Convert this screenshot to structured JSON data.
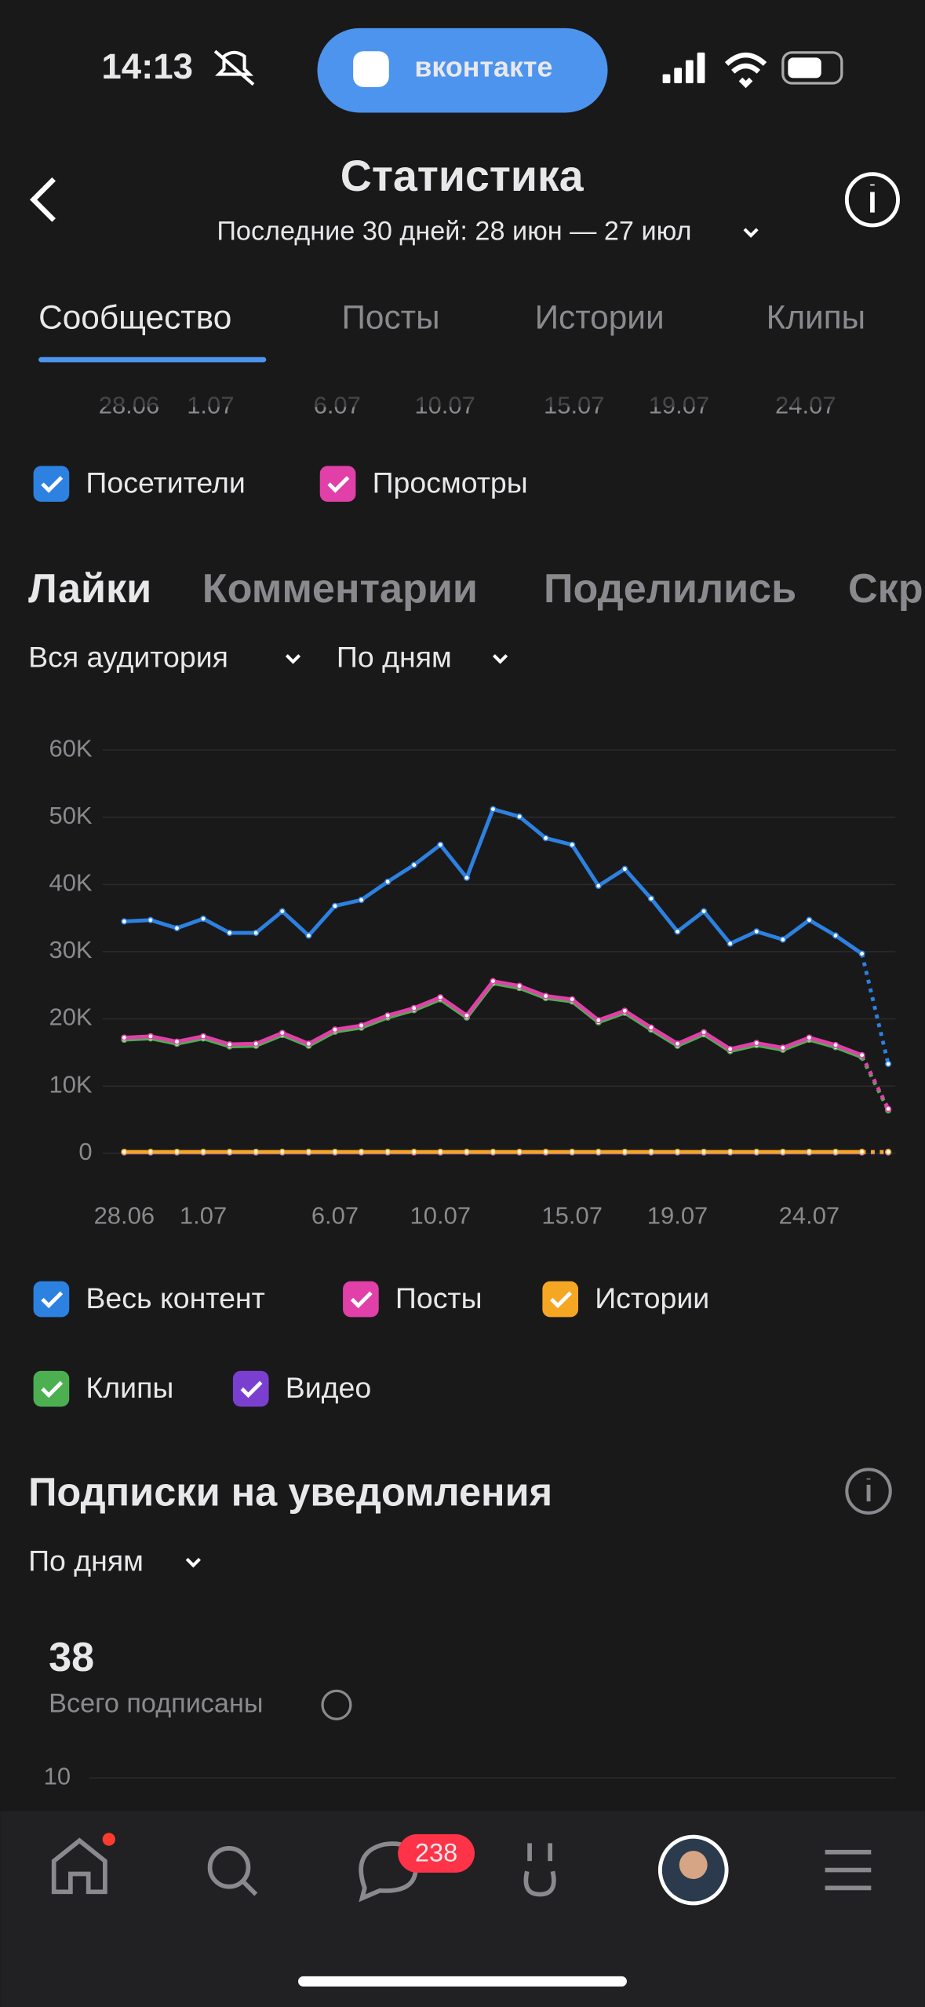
{
  "status_bar": {
    "time": "14:13",
    "app_pill": "вконтакте"
  },
  "header": {
    "title": "Статистика",
    "subtitle": "Последние 30 дней: 28 июн — 27 июл"
  },
  "tabs": [
    "Сообщество",
    "Посты",
    "Истории",
    "Клипы"
  ],
  "upper_chart": {
    "x_labels": [
      "28.06",
      "1.07",
      "6.07",
      "10.07",
      "15.07",
      "19.07",
      "24.07"
    ],
    "legend": [
      {
        "name": "Посетители",
        "color": "#2d81e0"
      },
      {
        "name": "Просмотры",
        "color": "#e040a8"
      }
    ]
  },
  "metric_tabs": [
    "Лайки",
    "Комментарии",
    "Поделились",
    "Скр"
  ],
  "filters": [
    "Вся аудитория",
    "По дням"
  ],
  "chart_data": {
    "type": "line",
    "categories": [
      "28.06",
      null,
      null,
      "1.07",
      null,
      null,
      null,
      null,
      "6.07",
      null,
      null,
      null,
      "10.07",
      null,
      null,
      null,
      null,
      "15.07",
      null,
      null,
      null,
      "19.07",
      null,
      null,
      null,
      null,
      "24.07",
      null,
      null,
      null
    ],
    "ylim": [
      0,
      60000
    ],
    "yticks": [
      0,
      {
        "value": 10000,
        "label": "10K"
      },
      {
        "value": 20000,
        "label": "20K"
      },
      {
        "value": 30000,
        "label": "30K"
      },
      {
        "value": 40000,
        "label": "40K"
      },
      {
        "value": 50000,
        "label": "50K"
      },
      {
        "value": 60000,
        "label": "60K"
      }
    ],
    "grid": true,
    "series": [
      {
        "name": "Весь контент",
        "color": "#2d81e0",
        "values": [
          34500,
          34700,
          33500,
          34900,
          32800,
          32800,
          36000,
          32400,
          36800,
          37700,
          40400,
          42900,
          45900,
          41000,
          51200,
          50100,
          46900,
          45900,
          39800,
          42300,
          37900,
          33000,
          36000,
          31200,
          33000,
          31800,
          34700,
          32400,
          29700,
          13300
        ]
      },
      {
        "name": "Посты",
        "color": "#e040a8",
        "values": [
          17200,
          17400,
          16600,
          17400,
          16200,
          16300,
          17900,
          16300,
          18400,
          19000,
          20500,
          21600,
          23200,
          20500,
          25600,
          24900,
          23400,
          22900,
          19800,
          21200,
          18700,
          16300,
          18000,
          15500,
          16400,
          15700,
          17200,
          16100,
          14600,
          6600
        ]
      },
      {
        "name": "Истории",
        "color": "#f5a623",
        "values": [
          200,
          200,
          200,
          200,
          200,
          200,
          200,
          200,
          200,
          200,
          200,
          200,
          200,
          200,
          200,
          200,
          200,
          200,
          200,
          200,
          200,
          200,
          200,
          200,
          200,
          200,
          200,
          200,
          200,
          200
        ]
      },
      {
        "name": "Клипы",
        "color": "#4caf50",
        "values": [
          16900,
          17100,
          16300,
          17100,
          15900,
          16000,
          17600,
          16000,
          18100,
          18700,
          20200,
          21300,
          22900,
          20200,
          25300,
          24600,
          23100,
          22600,
          19500,
          20900,
          18400,
          16000,
          17700,
          15200,
          16100,
          15400,
          16900,
          15800,
          14300,
          6400
        ]
      },
      {
        "name": "Видео",
        "color": "#7b3fd0",
        "values": [
          100,
          100,
          100,
          100,
          100,
          100,
          100,
          100,
          100,
          100,
          100,
          100,
          100,
          100,
          100,
          100,
          100,
          100,
          100,
          100,
          100,
          100,
          100,
          100,
          100,
          100,
          100,
          100,
          100,
          100
        ]
      }
    ]
  },
  "notifications": {
    "title": "Подписки на уведомления",
    "filter": "По дням",
    "total": "38",
    "total_label": "Всего подписаны",
    "axis_label": "10"
  },
  "nav": {
    "badge": "238"
  }
}
